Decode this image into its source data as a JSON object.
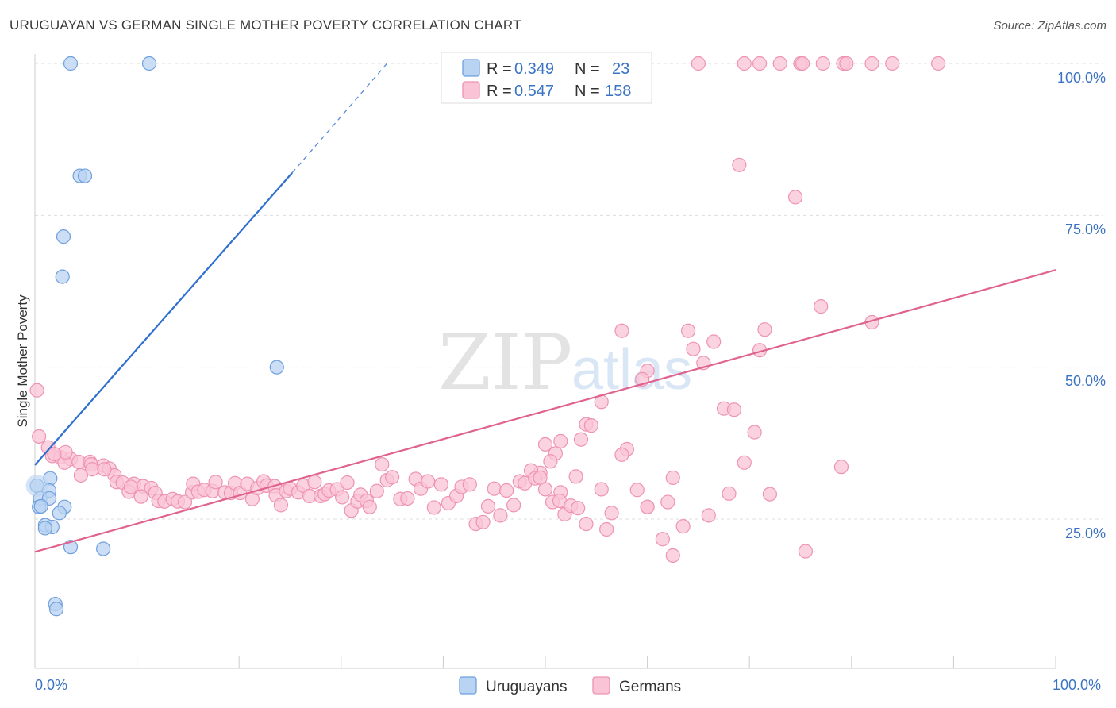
{
  "header": {
    "title": "URUGUAYAN VS GERMAN SINGLE MOTHER POVERTY CORRELATION CHART",
    "source": "Source: ZipAtlas.com"
  },
  "watermark": {
    "zip": "ZIP",
    "atlas": "atlas"
  },
  "legend": {
    "r_label": "R =",
    "n_label": "N =",
    "uruguayans": {
      "r": "0.349",
      "n": "23"
    },
    "germans": {
      "r": "0.547",
      "n": "158"
    }
  },
  "colors": {
    "uruguayans_fill": "#b9d3f2",
    "uruguayans_stroke": "#6fa0dd",
    "uruguayans_line": "#2f6fcf",
    "germans_fill": "#f9c4d5",
    "germans_stroke": "#ee93b1",
    "germans_line": "#e0628f",
    "tick_color": "#3b73c4",
    "grid": "#dddddd"
  },
  "chart_data": {
    "type": "scatter",
    "title": "URUGUAYAN VS GERMAN SINGLE MOTHER POVERTY CORRELATION CHART",
    "xlabel": "",
    "ylabel": "Single Mother Poverty",
    "xlim": [
      0,
      100
    ],
    "ylim": [
      0,
      105
    ],
    "x_tick_labels": [
      "0.0%",
      "100.0%"
    ],
    "y_ticks": [
      25,
      50,
      75,
      100
    ],
    "y_tick_labels": [
      "25.0%",
      "50.0%",
      "75.0%",
      "100.0%"
    ],
    "series": [
      {
        "name": "Uruguayans",
        "r": 0.349,
        "n": 23,
        "trend": {
          "x0": 0,
          "y0": 33.9,
          "x1": 25.2,
          "y1": 82,
          "dash_x1": 34.5,
          "dash_y1": 100
        },
        "points": [
          [
            3.5,
            100
          ],
          [
            11.2,
            100
          ],
          [
            4.4,
            81.5
          ],
          [
            4.9,
            81.5
          ],
          [
            2.8,
            71.5
          ],
          [
            2.7,
            64.9
          ],
          [
            23.7,
            50
          ],
          [
            0.2,
            30.5
          ],
          [
            1.5,
            31.7
          ],
          [
            1.4,
            29.7
          ],
          [
            0.5,
            28.4
          ],
          [
            1.4,
            28.4
          ],
          [
            0.4,
            27
          ],
          [
            2.9,
            27
          ],
          [
            0.6,
            27.1
          ],
          [
            2.4,
            26
          ],
          [
            1.0,
            24
          ],
          [
            1.7,
            23.7
          ],
          [
            1.0,
            23.5
          ],
          [
            3.5,
            20.4
          ],
          [
            6.7,
            20.1
          ],
          [
            2.0,
            11
          ],
          [
            2.1,
            10.2
          ]
        ]
      },
      {
        "name": "Germans",
        "r": 0.547,
        "n": 158,
        "trend": {
          "x0": 0,
          "y0": 19.6,
          "x1": 100,
          "y1": 66
        },
        "points": [
          [
            65,
            100
          ],
          [
            69.5,
            100
          ],
          [
            71,
            100
          ],
          [
            73,
            100
          ],
          [
            75,
            100
          ],
          [
            75.2,
            100
          ],
          [
            77.2,
            100
          ],
          [
            79.2,
            100
          ],
          [
            79.5,
            100
          ],
          [
            82,
            100
          ],
          [
            84,
            100
          ],
          [
            88.5,
            100
          ],
          [
            69,
            83.3
          ],
          [
            74.5,
            78
          ],
          [
            77,
            60
          ],
          [
            82,
            57.4
          ],
          [
            71.5,
            56.2
          ],
          [
            57.5,
            56
          ],
          [
            64,
            56
          ],
          [
            66.5,
            54.2
          ],
          [
            64.5,
            53
          ],
          [
            71,
            52.8
          ],
          [
            65.5,
            50.7
          ],
          [
            60,
            49.4
          ],
          [
            59.5,
            48
          ],
          [
            55.5,
            44.3
          ],
          [
            67.5,
            43.2
          ],
          [
            68.5,
            43
          ],
          [
            54,
            40.6
          ],
          [
            54.5,
            40.4
          ],
          [
            70.5,
            39.3
          ],
          [
            53.5,
            38.1
          ],
          [
            51.5,
            37.8
          ],
          [
            50,
            37.3
          ],
          [
            58,
            36.5
          ],
          [
            51,
            35.8
          ],
          [
            57.5,
            35.6
          ],
          [
            50.5,
            34.5
          ],
          [
            69.5,
            34.3
          ],
          [
            79,
            33.6
          ],
          [
            49.5,
            32.6
          ],
          [
            53,
            32
          ],
          [
            62.5,
            31.8
          ],
          [
            59,
            29.8
          ],
          [
            55.5,
            29.9
          ],
          [
            72,
            29.1
          ],
          [
            68,
            29.2
          ],
          [
            51.5,
            29.4
          ],
          [
            62,
            27.8
          ],
          [
            60,
            27
          ],
          [
            66,
            25.6
          ],
          [
            60,
            27
          ],
          [
            56.5,
            26
          ],
          [
            63.5,
            23.8
          ],
          [
            56,
            23.3
          ],
          [
            61.5,
            21.7
          ],
          [
            75.5,
            19.7
          ],
          [
            62.5,
            19
          ],
          [
            54,
            24.2
          ],
          [
            0.2,
            46.2
          ],
          [
            0.4,
            38.6
          ],
          [
            1.3,
            36.8
          ],
          [
            1.7,
            35.4
          ],
          [
            2.5,
            35.2
          ],
          [
            3.5,
            34.9
          ],
          [
            2.9,
            34.3
          ],
          [
            4.3,
            34.4
          ],
          [
            5.4,
            34.4
          ],
          [
            5.5,
            34
          ],
          [
            6.7,
            33.8
          ],
          [
            7.3,
            33.3
          ],
          [
            5.6,
            33.2
          ],
          [
            4.5,
            32.2
          ],
          [
            7.8,
            32.2
          ],
          [
            6.8,
            33.2
          ],
          [
            8.0,
            31.1
          ],
          [
            8.6,
            31
          ],
          [
            9.7,
            30.8
          ],
          [
            10.6,
            30.4
          ],
          [
            11.4,
            30.1
          ],
          [
            11.8,
            29.3
          ],
          [
            9.2,
            29.5
          ],
          [
            9.4,
            30.3
          ],
          [
            10.4,
            28.7
          ],
          [
            12.1,
            28
          ],
          [
            12.7,
            27.9
          ],
          [
            13.5,
            28.3
          ],
          [
            14.0,
            27.9
          ],
          [
            14.7,
            27.8
          ],
          [
            15.4,
            29.4
          ],
          [
            15.5,
            30.8
          ],
          [
            16.0,
            29.5
          ],
          [
            16.6,
            29.8
          ],
          [
            17.4,
            29.6
          ],
          [
            17.7,
            31.1
          ],
          [
            18.6,
            29.4
          ],
          [
            19.2,
            29.3
          ],
          [
            19.6,
            30.9
          ],
          [
            20.1,
            29.3
          ],
          [
            20.8,
            30.8
          ],
          [
            21.3,
            28.3
          ],
          [
            21.8,
            30.1
          ],
          [
            22.4,
            31.2
          ],
          [
            22.7,
            30.5
          ],
          [
            23.5,
            30.4
          ],
          [
            23.6,
            28.9
          ],
          [
            24.1,
            27.3
          ],
          [
            24.6,
            29.6
          ],
          [
            25.0,
            30
          ],
          [
            25.8,
            29.4
          ],
          [
            26.3,
            30.5
          ],
          [
            26.9,
            28.8
          ],
          [
            27.4,
            31.1
          ],
          [
            28.0,
            28.8
          ],
          [
            28.4,
            29.1
          ],
          [
            28.8,
            29.7
          ],
          [
            29.6,
            29.9
          ],
          [
            30.1,
            28.6
          ],
          [
            30.6,
            31
          ],
          [
            31.0,
            26.4
          ],
          [
            31.6,
            27.9
          ],
          [
            31.9,
            29
          ],
          [
            32.5,
            28
          ],
          [
            32.8,
            27
          ],
          [
            33.5,
            29.6
          ],
          [
            34.0,
            34
          ],
          [
            34.5,
            31.4
          ],
          [
            35.0,
            31.9
          ],
          [
            35.8,
            28.3
          ],
          [
            36.5,
            28.4
          ],
          [
            37.3,
            31.6
          ],
          [
            37.8,
            30
          ],
          [
            38.5,
            31.2
          ],
          [
            39.1,
            26.9
          ],
          [
            39.8,
            30.7
          ],
          [
            40.5,
            27.6
          ],
          [
            41.3,
            28.8
          ],
          [
            41.8,
            30.3
          ],
          [
            42.6,
            30.7
          ],
          [
            43.2,
            24.2
          ],
          [
            43.9,
            24.5
          ],
          [
            44.4,
            27.1
          ],
          [
            45.0,
            30
          ],
          [
            45.6,
            25.6
          ],
          [
            46.2,
            29.7
          ],
          [
            46.9,
            27.3
          ],
          [
            47.5,
            31.2
          ],
          [
            48.0,
            30.9
          ],
          [
            48.6,
            33
          ],
          [
            49.0,
            31.7
          ],
          [
            49.5,
            31.8
          ],
          [
            50.0,
            29.9
          ],
          [
            50.7,
            27.8
          ],
          [
            51.4,
            28
          ],
          [
            51.9,
            25.8
          ],
          [
            52.5,
            27.2
          ],
          [
            53.2,
            26.8
          ],
          [
            3.0,
            36
          ],
          [
            1.9,
            35.7
          ]
        ]
      }
    ]
  },
  "axis": {
    "ylabel": "Single Mother Poverty",
    "x_min_label": "0.0%",
    "x_max_label": "100.0%",
    "y_labels": [
      "25.0%",
      "50.0%",
      "75.0%",
      "100.0%"
    ]
  },
  "bottom_legend": {
    "uruguayans": "Uruguayans",
    "germans": "Germans"
  }
}
